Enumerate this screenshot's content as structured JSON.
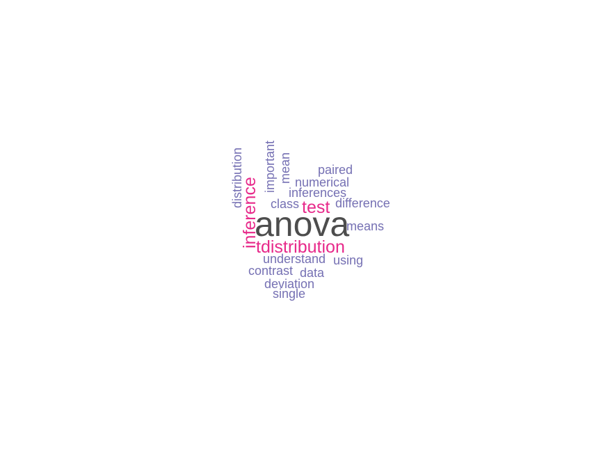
{
  "chart_data": {
    "type": "wordcloud",
    "colors": {
      "large": "#4d4d4d",
      "medium": "#e7298a",
      "small": "#7570b3"
    },
    "words": [
      {
        "text": "anova",
        "weight": 5,
        "color": "#4d4d4d",
        "rotated": false
      },
      {
        "text": "inference",
        "weight": 3,
        "color": "#e7298a",
        "rotated": true
      },
      {
        "text": "tdistribution",
        "weight": 3,
        "color": "#e7298a",
        "rotated": false
      },
      {
        "text": "test",
        "weight": 3,
        "color": "#e7298a",
        "rotated": false
      },
      {
        "text": "distribution",
        "weight": 1,
        "color": "#7570b3",
        "rotated": true
      },
      {
        "text": "important",
        "weight": 1,
        "color": "#7570b3",
        "rotated": true
      },
      {
        "text": "mean",
        "weight": 1,
        "color": "#7570b3",
        "rotated": true
      },
      {
        "text": "paired",
        "weight": 1,
        "color": "#7570b3",
        "rotated": false
      },
      {
        "text": "numerical",
        "weight": 1,
        "color": "#7570b3",
        "rotated": false
      },
      {
        "text": "inferences",
        "weight": 1,
        "color": "#7570b3",
        "rotated": false
      },
      {
        "text": "class",
        "weight": 1,
        "color": "#7570b3",
        "rotated": false
      },
      {
        "text": "difference",
        "weight": 1,
        "color": "#7570b3",
        "rotated": false
      },
      {
        "text": "means",
        "weight": 1,
        "color": "#7570b3",
        "rotated": false
      },
      {
        "text": "understand",
        "weight": 1,
        "color": "#7570b3",
        "rotated": false
      },
      {
        "text": "using",
        "weight": 1,
        "color": "#7570b3",
        "rotated": false
      },
      {
        "text": "contrast",
        "weight": 1,
        "color": "#7570b3",
        "rotated": false
      },
      {
        "text": "data",
        "weight": 1,
        "color": "#7570b3",
        "rotated": false
      },
      {
        "text": "deviation",
        "weight": 1,
        "color": "#7570b3",
        "rotated": false
      },
      {
        "text": "single",
        "weight": 1,
        "color": "#7570b3",
        "rotated": false
      }
    ]
  }
}
